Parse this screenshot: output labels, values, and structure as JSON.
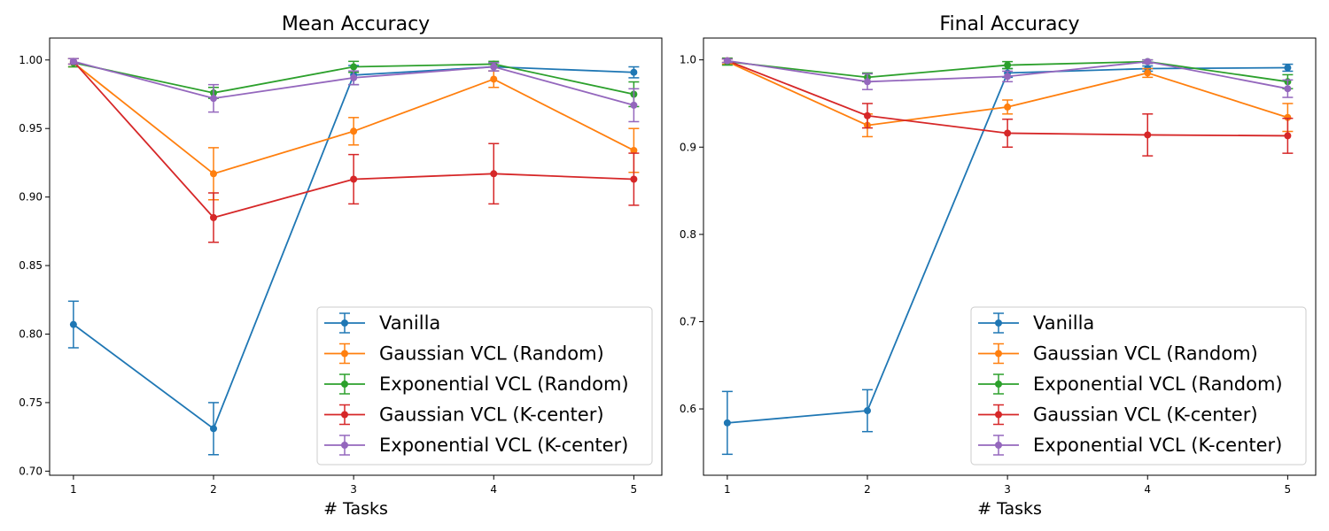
{
  "chart_data": [
    {
      "type": "line",
      "title": "Mean Accuracy",
      "xlabel": "# Tasks",
      "ylabel": "",
      "x": [
        1,
        2,
        3,
        4,
        5
      ],
      "xlim": [
        0.83,
        5.2
      ],
      "ylim": [
        0.697,
        1.016
      ],
      "yticks": [
        0.7,
        0.75,
        0.8,
        0.85,
        0.9,
        0.95,
        1.0
      ],
      "ytick_labels": [
        "0.70",
        "0.75",
        "0.80",
        "0.85",
        "0.90",
        "0.95",
        "1.00"
      ],
      "xtick_labels": [
        "1",
        "2",
        "3",
        "4",
        "5"
      ],
      "grid": false,
      "legend_position": "lower-right",
      "series": [
        {
          "name": "Vanilla",
          "color": "#1f77b4",
          "marker": "circle",
          "values": [
            0.807,
            0.731,
            0.989,
            0.995,
            0.991
          ],
          "errors": [
            0.017,
            0.019,
            0.007,
            0.003,
            0.004
          ]
        },
        {
          "name": "Gaussian VCL (Random)",
          "color": "#ff7f0e",
          "marker": "circle",
          "values": [
            0.998,
            0.917,
            0.948,
            0.986,
            0.934
          ],
          "errors": [
            0.003,
            0.019,
            0.01,
            0.006,
            0.016
          ]
        },
        {
          "name": "Exponential VCL (Random)",
          "color": "#2ca02c",
          "marker": "circle",
          "values": [
            0.998,
            0.976,
            0.995,
            0.997,
            0.975
          ],
          "errors": [
            0.003,
            0.004,
            0.004,
            0.002,
            0.009
          ]
        },
        {
          "name": "Gaussian VCL (K-center)",
          "color": "#d62728",
          "marker": "circle",
          "values": [
            0.999,
            0.885,
            0.913,
            0.917,
            0.913
          ],
          "errors": [
            0.002,
            0.018,
            0.018,
            0.022,
            0.019
          ]
        },
        {
          "name": "Exponential VCL (K-center)",
          "color": "#9467bd",
          "marker": "circle",
          "values": [
            0.999,
            0.972,
            0.987,
            0.995,
            0.967
          ],
          "errors": [
            0.002,
            0.01,
            0.005,
            0.003,
            0.012
          ]
        }
      ]
    },
    {
      "type": "line",
      "title": "Final Accuracy",
      "xlabel": "# Tasks",
      "ylabel": "",
      "x": [
        1,
        2,
        3,
        4,
        5
      ],
      "xlim": [
        0.83,
        5.2
      ],
      "ylim": [
        0.524,
        1.025
      ],
      "yticks": [
        0.6,
        0.7,
        0.8,
        0.9,
        1.0
      ],
      "ytick_labels": [
        "0.6",
        "0.7",
        "0.8",
        "0.9",
        "1.0"
      ],
      "xtick_labels": [
        "1",
        "2",
        "3",
        "4",
        "5"
      ],
      "grid": false,
      "legend_position": "lower-right",
      "series": [
        {
          "name": "Vanilla",
          "color": "#1f77b4",
          "marker": "circle",
          "values": [
            0.584,
            0.598,
            0.985,
            0.99,
            0.991
          ],
          "errors": [
            0.036,
            0.024,
            0.005,
            0.003,
            0.004
          ]
        },
        {
          "name": "Gaussian VCL (Random)",
          "color": "#ff7f0e",
          "marker": "circle",
          "values": [
            0.998,
            0.925,
            0.946,
            0.985,
            0.934
          ],
          "errors": [
            0.003,
            0.013,
            0.008,
            0.005,
            0.016
          ]
        },
        {
          "name": "Exponential VCL (Random)",
          "color": "#2ca02c",
          "marker": "circle",
          "values": [
            0.998,
            0.98,
            0.994,
            0.998,
            0.975
          ],
          "errors": [
            0.004,
            0.005,
            0.004,
            0.002,
            0.008
          ]
        },
        {
          "name": "Gaussian VCL (K-center)",
          "color": "#d62728",
          "marker": "circle",
          "values": [
            0.999,
            0.936,
            0.916,
            0.914,
            0.913
          ],
          "errors": [
            0.002,
            0.014,
            0.016,
            0.024,
            0.02
          ]
        },
        {
          "name": "Exponential VCL (K-center)",
          "color": "#9467bd",
          "marker": "circle",
          "values": [
            0.999,
            0.975,
            0.981,
            0.998,
            0.967
          ],
          "errors": [
            0.002,
            0.009,
            0.006,
            0.002,
            0.01
          ]
        }
      ]
    }
  ]
}
